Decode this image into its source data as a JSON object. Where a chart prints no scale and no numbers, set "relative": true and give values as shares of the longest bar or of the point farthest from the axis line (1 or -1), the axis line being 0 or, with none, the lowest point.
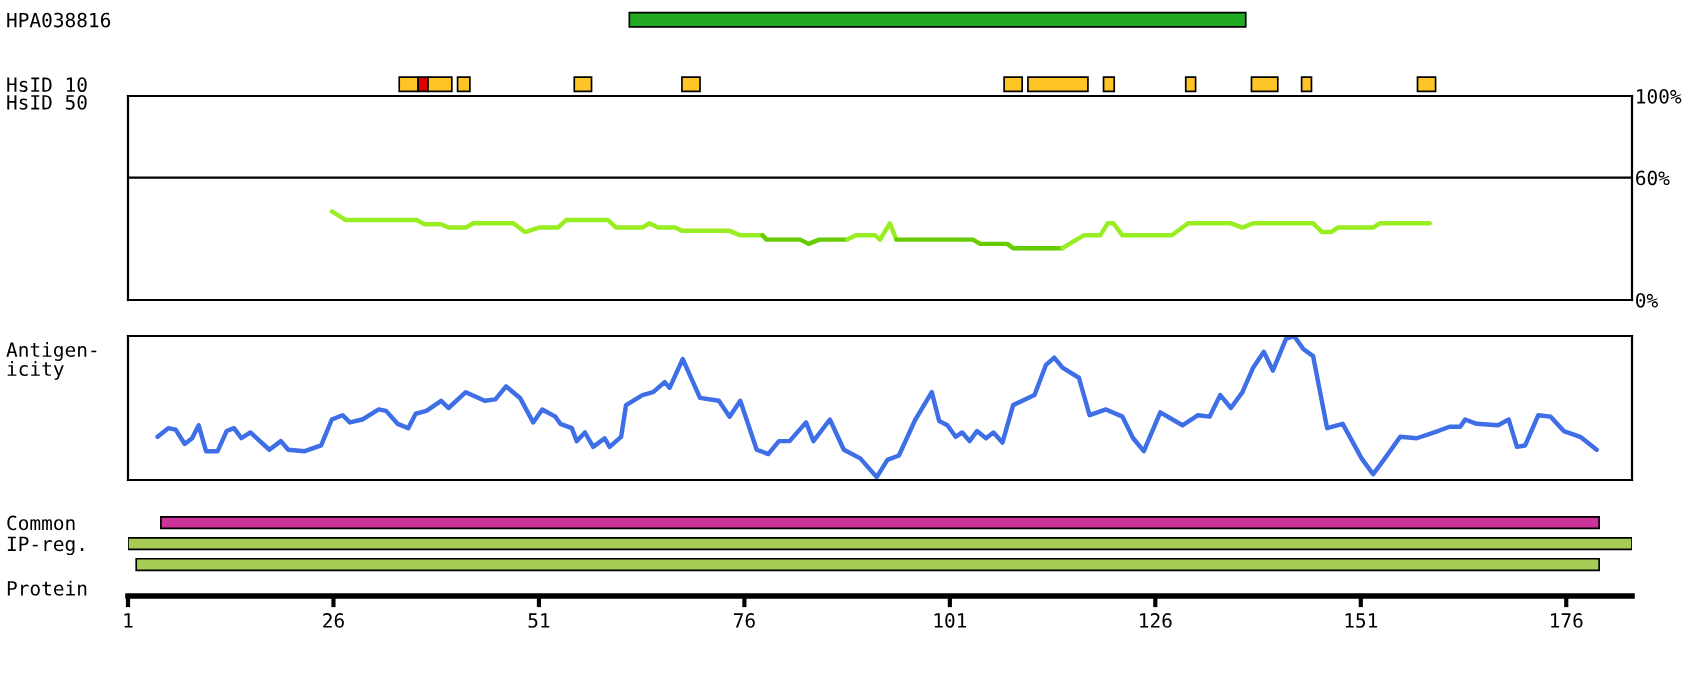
{
  "chart_data": [
    {
      "type": "bar",
      "orientation": "horizontal",
      "categories": [
        "HPA038816",
        "HsID 10"
      ],
      "xlim": [
        1,
        184
      ],
      "tick_labels": "y",
      "series": [
        {
          "color": "#22aa22",
          "base": [
            62,
            null
          ],
          "values": [
            75,
            null
          ]
        },
        {
          "color": "#ffc526",
          "base": [
            null,
            34
          ],
          "values": [
            null,
            2.3
          ]
        },
        {
          "color": "#dd0000",
          "base": [
            null,
            36.3
          ],
          "values": [
            null,
            1.2
          ]
        },
        {
          "color": "#ffc526",
          "base": [
            null,
            37.5
          ],
          "values": [
            null,
            2.9
          ]
        },
        {
          "color": "#ffc526",
          "base": [
            null,
            41.1
          ],
          "values": [
            null,
            1.5
          ]
        },
        {
          "color": "#ffc526",
          "base": [
            null,
            55.3
          ],
          "values": [
            null,
            2.1
          ]
        },
        {
          "color": "#ffc526",
          "base": [
            null,
            68.4
          ],
          "values": [
            null,
            2.2
          ]
        },
        {
          "color": "#ffc526",
          "base": [
            null,
            107.6
          ],
          "values": [
            null,
            2.2
          ]
        },
        {
          "color": "#ffc526",
          "base": [
            null,
            110.5
          ],
          "values": [
            null,
            7.3
          ]
        },
        {
          "color": "#ffc526",
          "base": [
            null,
            119.7
          ],
          "values": [
            null,
            1.3
          ]
        },
        {
          "color": "#ffc526",
          "base": [
            null,
            129.7
          ],
          "values": [
            null,
            1.2
          ]
        },
        {
          "color": "#ffc526",
          "base": [
            null,
            137.7
          ],
          "values": [
            null,
            3.2
          ]
        },
        {
          "color": "#ffc526",
          "base": [
            null,
            143.8
          ],
          "values": [
            null,
            1.2
          ]
        },
        {
          "color": "#ffc526",
          "base": [
            null,
            157.9
          ],
          "values": [
            null,
            2.2
          ]
        }
      ]
    },
    {
      "type": "line",
      "ylabel": "HsID 50",
      "xlim": [
        1,
        184
      ],
      "ylim": [
        0,
        100
      ],
      "yticks": [
        {
          "value": 0,
          "label": "0%"
        },
        {
          "value": 60,
          "label": "60%"
        },
        {
          "value": 100,
          "label": "100%"
        }
      ],
      "tick_labels": "y",
      "ref_lines": [
        {
          "axis": "y",
          "value": 60,
          "color": "#000000"
        }
      ],
      "series": [
        {
          "color": "#99ee22",
          "x": [
            25.8,
            27.5,
            36.1,
            37.1,
            39.1,
            40.0,
            42.1,
            43.0,
            47.9,
            49.3,
            51.0,
            53.3,
            54.3,
            59.4,
            60.4,
            63.6,
            64.4,
            65.5,
            67.6,
            68.4,
            74.2,
            75.5,
            78.2
          ],
          "values": [
            43.4,
            39.2,
            39.2,
            37.1,
            37.1,
            35.5,
            35.5,
            37.6,
            37.6,
            33.3,
            35.5,
            35.5,
            39.2,
            39.2,
            35.5,
            35.5,
            37.6,
            35.5,
            35.5,
            33.9,
            33.9,
            31.7,
            31.7
          ]
        },
        {
          "color": "#66cc00",
          "x": [
            78.2,
            78.7,
            82.8,
            83.8,
            85.1,
            88.5
          ],
          "values": [
            31.7,
            29.6,
            29.6,
            27.5,
            29.6,
            29.6
          ]
        },
        {
          "color": "#99ee22",
          "x": [
            88.5,
            89.6,
            91.9,
            92.5,
            93.7,
            94.5
          ],
          "values": [
            29.6,
            31.7,
            31.7,
            29.6,
            37.6,
            29.6
          ]
        },
        {
          "color": "#66cc00",
          "x": [
            94.5,
            103.8,
            104.7,
            108.0,
            108.7,
            114.7
          ],
          "values": [
            29.6,
            29.6,
            27.5,
            27.5,
            25.4,
            25.4
          ]
        },
        {
          "color": "#99ee22",
          "x": [
            114.7,
            116.4,
            117.3,
            119.3,
            120.2,
            120.9,
            122.0,
            128.0,
            130.0,
            135.2,
            136.6,
            137.9,
            145.2,
            146.3,
            147.4,
            148.2,
            152.5,
            153.3,
            159.4
          ],
          "values": [
            25.4,
            29.6,
            31.7,
            31.7,
            37.6,
            37.6,
            31.7,
            31.7,
            37.6,
            37.6,
            35.5,
            37.6,
            37.6,
            33.3,
            33.3,
            35.5,
            35.5,
            37.6,
            37.6
          ]
        }
      ]
    },
    {
      "type": "line",
      "ylabel": "Antigen-\nicity",
      "relative": true,
      "xlim": [
        1,
        184
      ],
      "tick_labels": false,
      "series": [
        {
          "color": "#3f6fe6",
          "x": [
            4.6,
            5.9,
            6.8,
            7.9,
            8.8,
            9.6,
            10.5,
            11.9,
            13.0,
            13.9,
            14.8,
            15.9,
            18.2,
            19.6,
            20.5,
            22.5,
            24.5,
            25.8,
            27.1,
            28.0,
            29.5,
            31.5,
            32.4,
            33.8,
            35.1,
            36.0,
            37.3,
            39.1,
            40.0,
            42.1,
            44.4,
            45.7,
            47.0,
            48.7,
            50.3,
            51.4,
            53.0,
            53.6,
            55.0,
            55.6,
            56.6,
            57.6,
            59.0,
            59.6,
            61.0,
            61.6,
            63.6,
            64.9,
            66.3,
            66.9,
            68.5,
            70.6,
            72.9,
            74.2,
            75.5,
            77.5,
            78.9,
            80.2,
            81.5,
            83.5,
            84.4,
            86.4,
            88.1,
            90.1,
            92.1,
            93.4,
            94.8,
            96.8,
            98.8,
            99.7,
            100.7,
            101.7,
            102.5,
            103.4,
            104.3,
            105.4,
            106.3,
            107.4,
            108.7,
            111.3,
            112.7,
            113.7,
            114.7,
            116.7,
            118.0,
            120.0,
            122.0,
            123.3,
            124.6,
            126.6,
            129.3,
            131.2,
            132.6,
            133.9,
            135.2,
            136.6,
            137.9,
            139.2,
            140.3,
            141.9,
            142.9,
            144.0,
            145.2,
            146.9,
            148.8,
            151.1,
            152.5,
            153.8,
            155.8,
            157.8,
            160.4,
            161.8,
            163.1,
            163.7,
            165.1,
            167.7,
            169.0,
            170.0,
            171.0,
            172.6,
            174.1,
            175.7,
            177.7,
            179.7
          ],
          "values": [
            0.3,
            0.36,
            0.35,
            0.25,
            0.29,
            0.38,
            0.2,
            0.2,
            0.34,
            0.36,
            0.29,
            0.33,
            0.21,
            0.27,
            0.21,
            0.2,
            0.24,
            0.42,
            0.45,
            0.4,
            0.42,
            0.49,
            0.48,
            0.39,
            0.36,
            0.46,
            0.48,
            0.55,
            0.5,
            0.61,
            0.55,
            0.56,
            0.65,
            0.57,
            0.4,
            0.49,
            0.44,
            0.39,
            0.36,
            0.27,
            0.33,
            0.23,
            0.29,
            0.23,
            0.3,
            0.52,
            0.59,
            0.61,
            0.68,
            0.64,
            0.84,
            0.57,
            0.55,
            0.44,
            0.55,
            0.21,
            0.18,
            0.27,
            0.27,
            0.4,
            0.27,
            0.42,
            0.21,
            0.15,
            0.02,
            0.14,
            0.17,
            0.42,
            0.61,
            0.41,
            0.38,
            0.3,
            0.33,
            0.27,
            0.34,
            0.29,
            0.33,
            0.26,
            0.52,
            0.59,
            0.8,
            0.85,
            0.78,
            0.71,
            0.45,
            0.49,
            0.44,
            0.29,
            0.2,
            0.47,
            0.38,
            0.45,
            0.44,
            0.59,
            0.5,
            0.61,
            0.78,
            0.89,
            0.76,
            0.98,
            1.0,
            0.91,
            0.86,
            0.36,
            0.39,
            0.15,
            0.04,
            0.14,
            0.3,
            0.29,
            0.34,
            0.37,
            0.37,
            0.42,
            0.39,
            0.38,
            0.42,
            0.23,
            0.24,
            0.45,
            0.44,
            0.34,
            0.3,
            0.21
          ]
        }
      ]
    },
    {
      "type": "bar",
      "orientation": "horizontal",
      "categories": [
        "Common",
        "IP-reg.",
        null
      ],
      "xlabel": "Protein",
      "xlim": [
        1,
        184
      ],
      "xticks": [
        1,
        26,
        51,
        76,
        101,
        126,
        151,
        176
      ],
      "base": [
        5,
        1,
        2
      ],
      "values": [
        175,
        183,
        178
      ],
      "colors": [
        "#cc3399",
        "#a6cc55",
        "#a6cc55"
      ]
    }
  ]
}
